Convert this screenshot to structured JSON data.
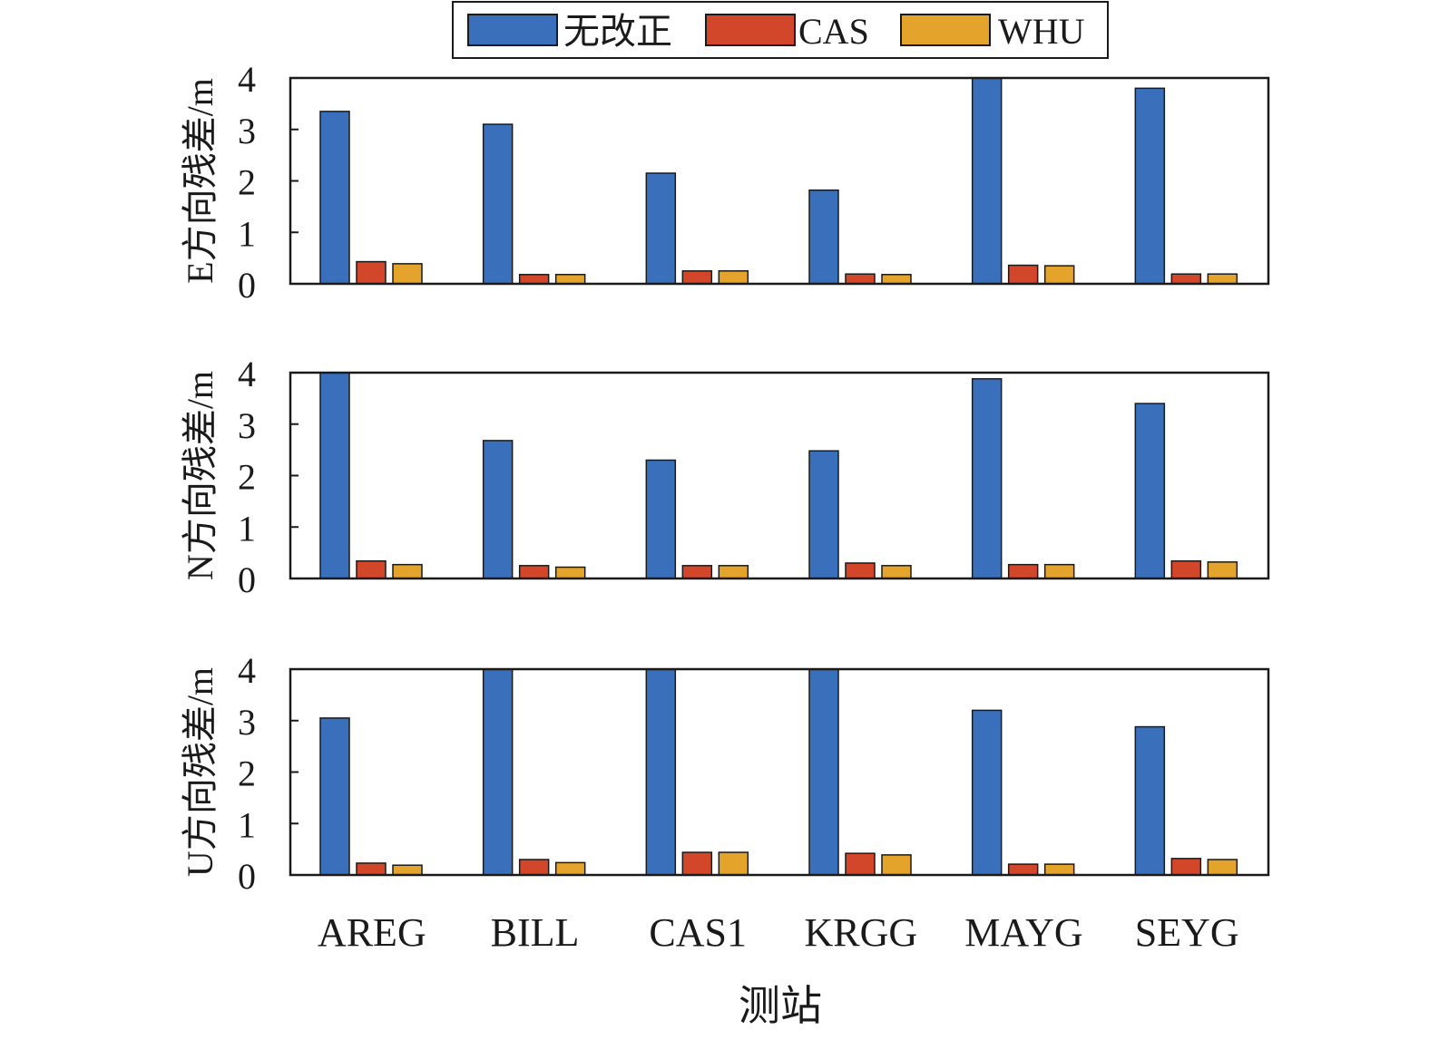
{
  "legend": {
    "items": [
      {
        "label": "无改正",
        "color": "#3a70bb"
      },
      {
        "label": "CAS",
        "color": "#d2472a"
      },
      {
        "label": "WHU",
        "color": "#e4a42c"
      }
    ]
  },
  "xlabel": "测站",
  "chart_data": [
    {
      "type": "bar",
      "ylabel": "E方向残差/m",
      "categories": [
        "AREG",
        "BILL",
        "CAS1",
        "KRGG",
        "MAYG",
        "SEYG"
      ],
      "ylim": [
        0,
        4
      ],
      "yticks": [
        0,
        1,
        2,
        3,
        4
      ],
      "series": [
        {
          "name": "无改正",
          "values": [
            3.35,
            3.1,
            2.15,
            1.82,
            4.0,
            3.8
          ]
        },
        {
          "name": "CAS",
          "values": [
            0.43,
            0.18,
            0.25,
            0.19,
            0.36,
            0.19
          ]
        },
        {
          "name": "WHU",
          "values": [
            0.39,
            0.18,
            0.25,
            0.18,
            0.35,
            0.19
          ]
        }
      ],
      "legend_position": "top-center"
    },
    {
      "type": "bar",
      "ylabel": "N方向残差/m",
      "categories": [
        "AREG",
        "BILL",
        "CAS1",
        "KRGG",
        "MAYG",
        "SEYG"
      ],
      "ylim": [
        0,
        4
      ],
      "yticks": [
        0,
        1,
        2,
        3,
        4
      ],
      "series": [
        {
          "name": "无改正",
          "values": [
            4.0,
            2.68,
            2.3,
            2.48,
            3.88,
            3.4
          ]
        },
        {
          "name": "CAS",
          "values": [
            0.34,
            0.25,
            0.25,
            0.3,
            0.27,
            0.34
          ]
        },
        {
          "name": "WHU",
          "values": [
            0.27,
            0.22,
            0.25,
            0.25,
            0.27,
            0.32
          ]
        }
      ]
    },
    {
      "type": "bar",
      "ylabel": "U方向残差/m",
      "categories": [
        "AREG",
        "BILL",
        "CAS1",
        "KRGG",
        "MAYG",
        "SEYG"
      ],
      "ylim": [
        0,
        4
      ],
      "yticks": [
        0,
        1,
        2,
        3,
        4
      ],
      "series": [
        {
          "name": "无改正",
          "values": [
            3.05,
            4.0,
            4.0,
            4.0,
            3.2,
            2.88
          ]
        },
        {
          "name": "CAS",
          "values": [
            0.23,
            0.3,
            0.44,
            0.42,
            0.21,
            0.32
          ]
        },
        {
          "name": "WHU",
          "values": [
            0.19,
            0.24,
            0.44,
            0.39,
            0.21,
            0.3
          ]
        }
      ]
    }
  ]
}
